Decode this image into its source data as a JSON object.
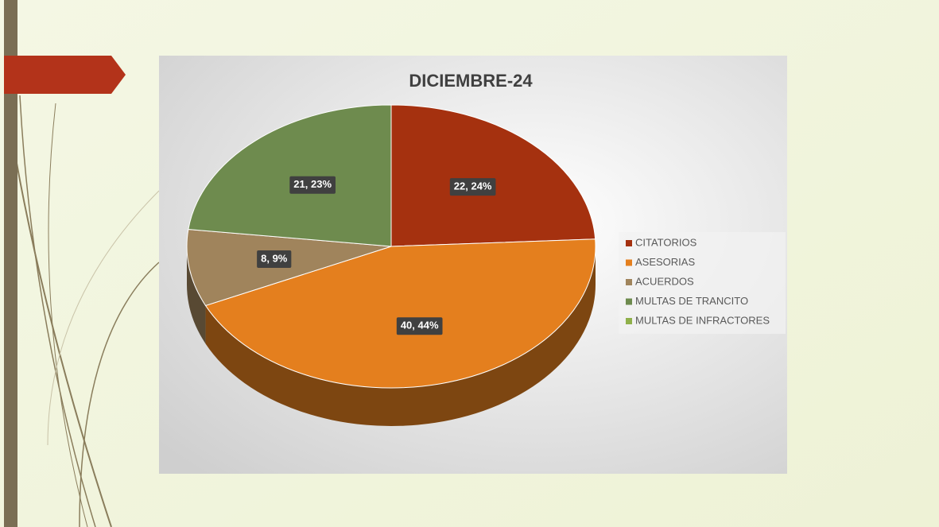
{
  "chart_data": {
    "type": "pie",
    "title": "DICIEMBRE-24",
    "categories": [
      "CITATORIOS",
      "ASESORIAS",
      "ACUERDOS",
      "MULTAS DE TRANCITO",
      "MULTAS DE INFRACTORES"
    ],
    "values": [
      22,
      40,
      8,
      21,
      0
    ],
    "value_labels": [
      "22, 24%",
      "40, 44%",
      "8, 9%",
      "21, 23%",
      null
    ],
    "colors": [
      "#a5310f",
      "#e47f1e",
      "#a0845c",
      "#6e8b4e",
      "#8fb04a"
    ],
    "legend": "right"
  }
}
